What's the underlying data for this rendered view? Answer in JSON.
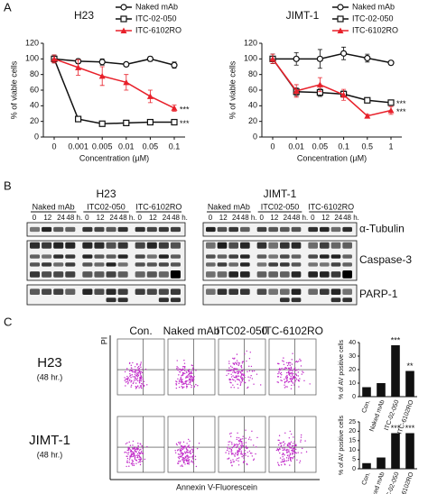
{
  "figure": {
    "panel_a": "A",
    "panel_b": "B",
    "panel_c": "C"
  },
  "chart_data": [
    {
      "type": "line",
      "title": "H23",
      "xlabel": "Concentration (µM)",
      "ylabel": "% of viable cells",
      "categories": [
        "0",
        "0.001",
        "0.005",
        "0.01",
        "0.05",
        "0.1"
      ],
      "ylim": [
        0,
        120
      ],
      "yticks": [
        0,
        20,
        40,
        60,
        80,
        100,
        120
      ],
      "legend": "top-right",
      "series": [
        {
          "name": "Naked mAb",
          "color": "#111111",
          "marker": "circle",
          "values": [
            100,
            97,
            96,
            93,
            100,
            92
          ],
          "errors": [
            5,
            3,
            4,
            2,
            3,
            4
          ]
        },
        {
          "name": "ITC-02-050",
          "color": "#111111",
          "marker": "square",
          "values": [
            100,
            23,
            17,
            18,
            19,
            19
          ],
          "errors": [
            5,
            2,
            1,
            1,
            1,
            1
          ],
          "annotation": "***"
        },
        {
          "name": "ITC-6102RO",
          "color": "#e8202a",
          "marker": "triangle",
          "values": [
            100,
            89,
            78,
            70,
            52,
            37
          ],
          "errors": [
            5,
            10,
            12,
            10,
            8,
            4
          ],
          "annotation": "***"
        }
      ]
    },
    {
      "type": "line",
      "title": "JIMT-1",
      "xlabel": "Concentration (µM)",
      "ylabel": "% of viable cells",
      "categories": [
        "0",
        "0.01",
        "0.05",
        "0.1",
        "0.5",
        "1"
      ],
      "ylim": [
        0,
        120
      ],
      "yticks": [
        0,
        20,
        40,
        60,
        80,
        100,
        120
      ],
      "legend": "top-right",
      "series": [
        {
          "name": "Naked mAb",
          "color": "#111111",
          "marker": "circle",
          "values": [
            100,
            100,
            100,
            107,
            101,
            95
          ],
          "errors": [
            6,
            8,
            12,
            8,
            5,
            2
          ]
        },
        {
          "name": "ITC-02-050",
          "color": "#111111",
          "marker": "square",
          "values": [
            100,
            58,
            57,
            55,
            47,
            44
          ],
          "errors": [
            6,
            5,
            5,
            4,
            3,
            2
          ],
          "annotation": "***"
        },
        {
          "name": "ITC-6102RO",
          "color": "#e8202a",
          "marker": "triangle",
          "values": [
            100,
            59,
            67,
            54,
            27,
            34
          ],
          "errors": [
            6,
            8,
            9,
            7,
            2,
            5
          ],
          "annotation": "***"
        }
      ]
    },
    {
      "type": "bar",
      "ylabel": "% of AV positive cells",
      "color": "#111111",
      "categories": [
        "Con.",
        "Naked mAb",
        "ITC-02-050",
        "ITC-6102RO"
      ],
      "values": [
        7,
        10,
        38,
        19
      ],
      "significance": [
        null,
        null,
        "***",
        "**"
      ],
      "ylim": [
        0,
        40
      ],
      "yticks": [
        0,
        10,
        20,
        30,
        40
      ]
    },
    {
      "type": "bar",
      "ylabel": "% of AV positive cells",
      "color": "#111111",
      "categories": [
        "Con.",
        "Naked mAb",
        "ITC-02-050",
        "ITC-6102RO"
      ],
      "values": [
        3,
        6,
        19,
        19
      ],
      "significance": [
        null,
        null,
        "***",
        "***"
      ],
      "ylim": [
        0,
        25
      ],
      "yticks": [
        0,
        5,
        10,
        15,
        20,
        25
      ]
    }
  ],
  "blot": {
    "cell_lines": [
      "H23",
      "JIMT-1"
    ],
    "groups": [
      "Naked mAb",
      "ITC02-050",
      "ITC-6102RO"
    ],
    "times": [
      "0",
      "12",
      "24",
      "48 h."
    ],
    "proteins": [
      "α-Tubulin",
      "Caspase-3",
      "PARP-1"
    ]
  },
  "flow": {
    "columns": [
      "Con.",
      "Naked mAb",
      "ITC02-050",
      "ITC-6102RO"
    ],
    "rows": [
      {
        "line": "H23",
        "time": "(48 hr.)"
      },
      {
        "line": "JIMT-1",
        "time": "(48 hr.)"
      }
    ],
    "y_axis": "PI",
    "x_axis": "Annexin V-Fluorescein"
  }
}
